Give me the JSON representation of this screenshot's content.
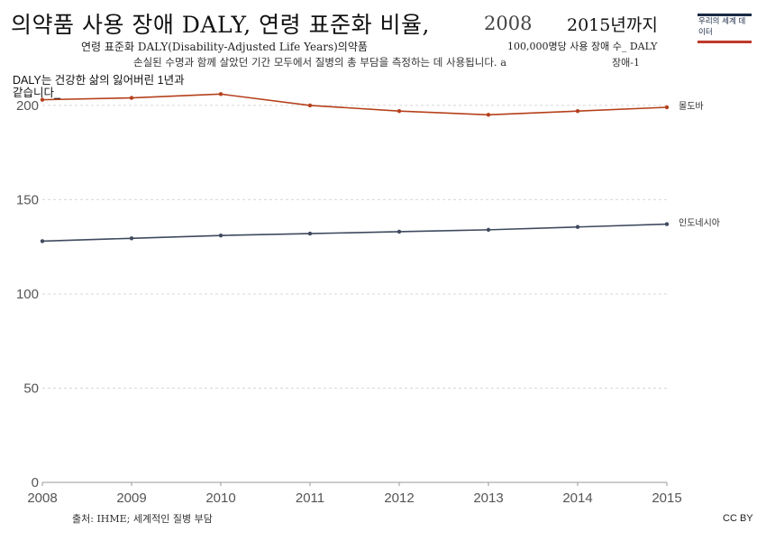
{
  "header": {
    "title_main": "의약품        사용 장애 DALY, 연령 표준화 비율,",
    "title_year": "2008",
    "title_end": "2015년까지",
    "subtitle1": "연령 표준화 DALY(Disability-Adjusted Life Years)의약품",
    "subtitle2": "손실된 수명과 함께 살았던 기간 모두에서 질병의 총 부담을 측정하는 데 사용됩니다. a",
    "unit_label": "100,000명당 사용 장애 수_ DALY",
    "right_note": "장애-1"
  },
  "note": {
    "line1": "DALY는 건강한 삶의 잃어버린 1년과",
    "line2": "같습니다_"
  },
  "logo": {
    "text": "우리의 세계 데이터"
  },
  "footer": {
    "source": "출처: IHME; 세계적인 질병 부담",
    "license": "CC BY"
  },
  "chart_data": {
    "type": "line",
    "x": [
      2008,
      2009,
      2010,
      2011,
      2012,
      2013,
      2014,
      2015
    ],
    "ylim": [
      0,
      210
    ],
    "yticks": [
      0,
      50,
      100,
      150,
      200
    ],
    "grid": true,
    "series": [
      {
        "name": "몰도바",
        "color": "#b5411c",
        "values": [
          203,
          204,
          206,
          200,
          197,
          195,
          197,
          199
        ]
      },
      {
        "name": "인도네시아",
        "color": "#3f4a5e",
        "values": [
          128,
          129.5,
          131,
          132,
          133,
          134,
          135.5,
          137
        ]
      }
    ]
  }
}
